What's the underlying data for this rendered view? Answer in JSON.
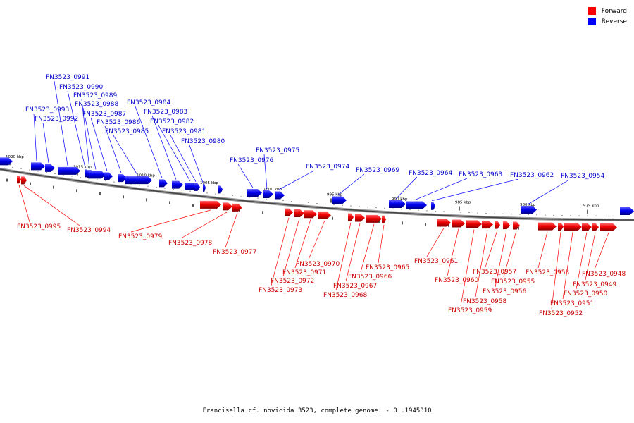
{
  "legend": {
    "forward_label": "Forward",
    "reverse_label": "Reverse",
    "forward_color": "#ff0000",
    "reverse_color": "#0000ff"
  },
  "caption": "Francisella cf. novicida 3523, complete genome. - 0..1945310",
  "scale_ticks": [
    "1020 kbp",
    "1015 kbp",
    "1010 kbp",
    "1005 kbp",
    "1000 kbp",
    "995 kbp",
    "990 kbp",
    "985 kbp",
    "980 kbp",
    "975 kbp"
  ],
  "reverse_genes": [
    "FN3523_0993",
    "FN3523_0992",
    "FN3523_0991",
    "FN3523_0990",
    "FN3523_0989",
    "FN3523_0988",
    "FN3523_0987",
    "FN3523_0986",
    "FN3523_0985",
    "FN3523_0984",
    "FN3523_0983",
    "FN3523_0982",
    "FN3523_0981",
    "FN3523_0980",
    "FN3523_0976",
    "FN3523_0975",
    "FN3523_0974",
    "FN3523_0969",
    "FN3523_0964",
    "FN3523_0963",
    "FN3523_0962",
    "FN3523_0954"
  ],
  "forward_genes": [
    "FN3523_0995",
    "FN3523_0994",
    "FN3523_0979",
    "FN3523_0978",
    "FN3523_0977",
    "FN3523_0973",
    "FN3523_0972",
    "FN3523_0971",
    "FN3523_0970",
    "FN3523_0968",
    "FN3523_0967",
    "FN3523_0966",
    "FN3523_0965",
    "FN3523_0961",
    "FN3523_0960",
    "FN3523_0959",
    "FN3523_0958",
    "FN3523_0957",
    "FN3523_0956",
    "FN3523_0955",
    "FN3523_0953",
    "FN3523_0952",
    "FN3523_0951",
    "FN3523_0950",
    "FN3523_0949",
    "FN3523_0948"
  ]
}
